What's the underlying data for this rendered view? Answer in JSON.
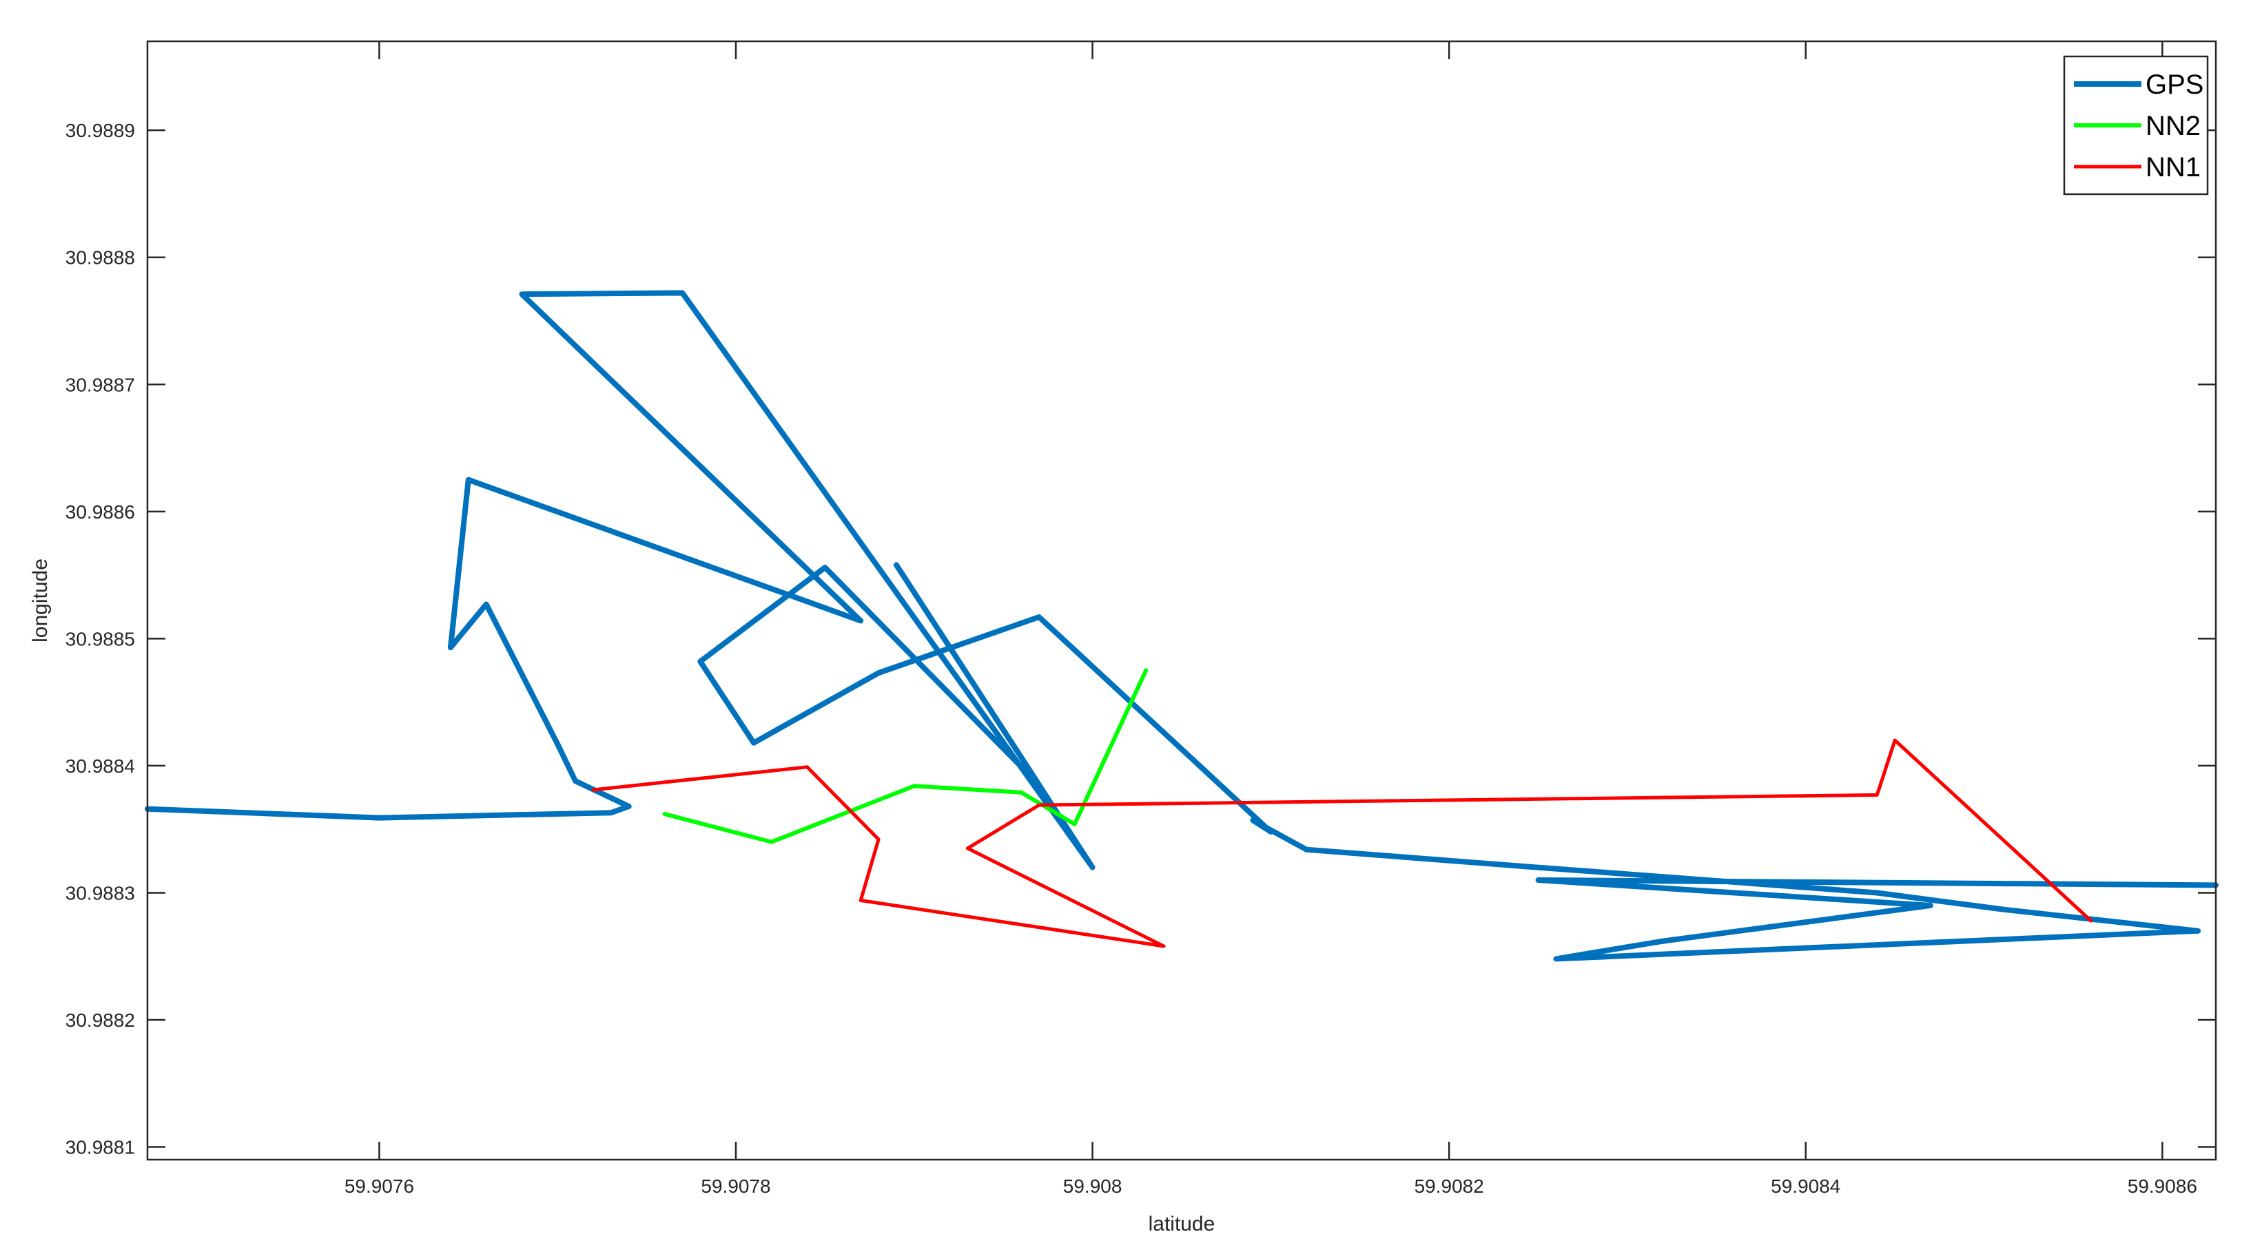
{
  "chart_data": {
    "type": "line",
    "title": "",
    "xlabel": "latitude",
    "ylabel": "longitude",
    "xlim": [
      59.90747,
      59.90863
    ],
    "ylim": [
      30.98809,
      30.98897
    ],
    "xticks": [
      59.9076,
      59.9078,
      59.908,
      59.9082,
      59.9084,
      59.9086
    ],
    "xtick_labels": [
      "59.9076",
      "59.9078",
      "59.908",
      "59.9082",
      "59.9084",
      "59.9086"
    ],
    "yticks": [
      30.9881,
      30.9882,
      30.9883,
      30.9884,
      30.9885,
      30.9886,
      30.9887,
      30.9888,
      30.9889
    ],
    "ytick_labels": [
      "30.9881",
      "30.9882",
      "30.9883",
      "30.9884",
      "30.9885",
      "30.9886",
      "30.9887",
      "30.9888",
      "30.9889"
    ],
    "grid": false,
    "legend_position": "top-right",
    "series": [
      {
        "name": "GPS",
        "color": "#0072BD",
        "points": [
          [
            59.90747,
            30.988366
          ],
          [
            59.9076,
            30.988359
          ],
          [
            59.90773,
            30.988363
          ],
          [
            59.90774,
            30.988368
          ],
          [
            59.90771,
            30.988388
          ],
          [
            59.9077,
            30.988417
          ],
          [
            59.90766,
            30.988527
          ],
          [
            59.90764,
            30.988493
          ],
          [
            59.90765,
            30.988625
          ],
          [
            59.90787,
            30.988514
          ],
          [
            59.90768,
            30.988771
          ],
          [
            59.90777,
            30.988772
          ],
          [
            59.908,
            30.98832
          ],
          [
            59.90789,
            30.988558
          ],
          [
            59.90797,
            30.988385
          ],
          [
            59.90785,
            30.988556
          ],
          [
            59.90778,
            30.988482
          ],
          [
            59.90781,
            30.988418
          ],
          [
            59.90788,
            30.988473
          ],
          [
            59.90797,
            30.988517
          ],
          [
            59.9081,
            30.988348
          ],
          [
            59.90809,
            30.988357
          ],
          [
            59.90812,
            30.988334
          ],
          [
            59.90824,
            30.988321
          ],
          [
            59.90844,
            30.9883
          ],
          [
            59.90851,
            30.988287
          ],
          [
            59.90862,
            30.98827
          ],
          [
            59.90826,
            30.988248
          ],
          [
            59.90832,
            30.988262
          ],
          [
            59.90847,
            30.98829
          ],
          [
            59.90825,
            30.98831
          ],
          [
            59.90863,
            30.988306
          ]
        ]
      },
      {
        "name": "NN2",
        "color": "#00FF00",
        "points": [
          [
            59.90776,
            30.988362
          ],
          [
            59.90782,
            30.98834
          ],
          [
            59.9079,
            30.988384
          ],
          [
            59.90796,
            30.988379
          ],
          [
            59.90799,
            30.988354
          ],
          [
            59.90803,
            30.988475
          ]
        ]
      },
      {
        "name": "NN1",
        "color": "#FF0000",
        "points": [
          [
            59.90772,
            30.988381
          ],
          [
            59.90784,
            30.988399
          ],
          [
            59.90788,
            30.988342
          ],
          [
            59.90787,
            30.988294
          ],
          [
            59.90804,
            30.988258
          ],
          [
            59.90793,
            30.988335
          ],
          [
            59.90797,
            30.988369
          ],
          [
            59.90844,
            30.988377
          ],
          [
            59.90845,
            30.98842
          ],
          [
            59.90856,
            30.988278
          ]
        ]
      }
    ]
  }
}
